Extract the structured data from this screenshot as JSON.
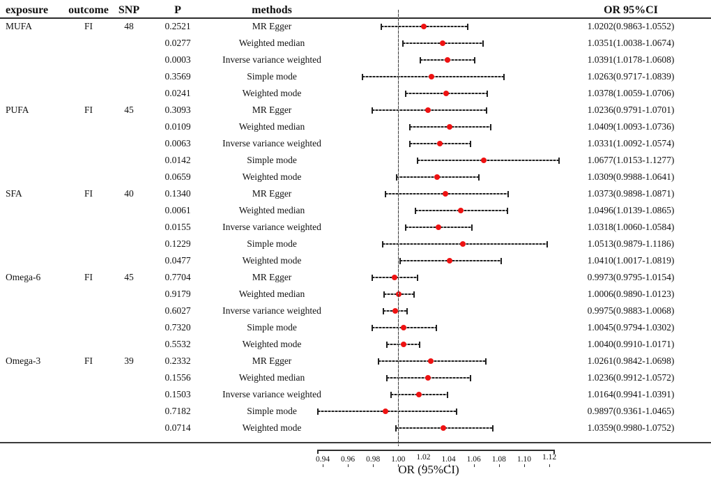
{
  "header": {
    "exposure": "exposure",
    "outcome": "outcome",
    "snp": "SNP",
    "p": "P",
    "methods": "methods",
    "or_ci": "OR 95%CI"
  },
  "axis": {
    "label": "OR (95%CI)",
    "min": 0.94,
    "max": 1.12,
    "ticks": [
      0.94,
      0.96,
      0.98,
      1.0,
      1.02,
      1.04,
      1.06,
      1.08,
      1.1,
      1.12
    ],
    "tick_labels": [
      "0.94",
      "0.96",
      "0.98",
      "1.00",
      "1.02",
      "1.04",
      "1.06",
      "1.08",
      "1.10",
      "1.12"
    ],
    "reference_line": 1.0
  },
  "colors": {
    "point": "#ee1212",
    "bar": "#1f1f1f",
    "text": "#111111"
  },
  "chart_data": {
    "type": "forest",
    "title": "",
    "xlabel": "OR (95%CI)",
    "xlim": [
      0.94,
      1.12
    ],
    "reference_value": 1.0,
    "legend_position": "none",
    "grid": false,
    "groups": [
      {
        "exposure": "MUFA",
        "outcome": "FI",
        "snp": "48",
        "rows": [
          {
            "p": "0.2521",
            "method": "MR Egger",
            "or": 1.0202,
            "lo": 0.9863,
            "hi": 1.0552,
            "label": "1.0202(0.9863-1.0552)"
          },
          {
            "p": "0.0277",
            "method": "Weighted median",
            "or": 1.0351,
            "lo": 1.0038,
            "hi": 1.0674,
            "label": "1.0351(1.0038-1.0674)"
          },
          {
            "p": "0.0003",
            "method": "Inverse variance weighted",
            "or": 1.0391,
            "lo": 1.0178,
            "hi": 1.0608,
            "label": "1.0391(1.0178-1.0608)"
          },
          {
            "p": "0.3569",
            "method": "Simple mode",
            "or": 1.0263,
            "lo": 0.9717,
            "hi": 1.0839,
            "label": "1.0263(0.9717-1.0839)"
          },
          {
            "p": "0.0241",
            "method": "Weighted mode",
            "or": 1.0378,
            "lo": 1.0059,
            "hi": 1.0706,
            "label": "1.0378(1.0059-1.0706)"
          }
        ]
      },
      {
        "exposure": "PUFA",
        "outcome": "FI",
        "snp": "45",
        "rows": [
          {
            "p": "0.3093",
            "method": "MR Egger",
            "or": 1.0236,
            "lo": 0.9791,
            "hi": 1.0701,
            "label": "1.0236(0.9791-1.0701)"
          },
          {
            "p": "0.0109",
            "method": "Weighted median",
            "or": 1.0409,
            "lo": 1.0093,
            "hi": 1.0736,
            "label": "1.0409(1.0093-1.0736)"
          },
          {
            "p": "0.0063",
            "method": "Inverse variance weighted",
            "or": 1.0331,
            "lo": 1.0092,
            "hi": 1.0574,
            "label": "1.0331(1.0092-1.0574)"
          },
          {
            "p": "0.0142",
            "method": "Simple mode",
            "or": 1.0677,
            "lo": 1.0153,
            "hi": 1.1277,
            "label": "1.0677(1.0153-1.1277)"
          },
          {
            "p": "0.0659",
            "method": "Weighted mode",
            "or": 1.0309,
            "lo": 0.9988,
            "hi": 1.0641,
            "label": "1.0309(0.9988-1.0641)"
          }
        ]
      },
      {
        "exposure": "SFA",
        "outcome": "FI",
        "snp": "40",
        "rows": [
          {
            "p": "0.1340",
            "method": "MR Egger",
            "or": 1.0373,
            "lo": 0.9898,
            "hi": 1.0871,
            "label": "1.0373(0.9898-1.0871)"
          },
          {
            "p": "0.0061",
            "method": "Weighted median",
            "or": 1.0496,
            "lo": 1.0139,
            "hi": 1.0865,
            "label": "1.0496(1.0139-1.0865)"
          },
          {
            "p": "0.0155",
            "method": "Inverse variance weighted",
            "or": 1.0318,
            "lo": 1.006,
            "hi": 1.0584,
            "label": "1.0318(1.0060-1.0584)"
          },
          {
            "p": "0.1229",
            "method": "Simple mode",
            "or": 1.0513,
            "lo": 0.9879,
            "hi": 1.1186,
            "label": "1.0513(0.9879-1.1186)"
          },
          {
            "p": "0.0477",
            "method": "Weighted mode",
            "or": 1.041,
            "lo": 1.0017,
            "hi": 1.0819,
            "label": "1.0410(1.0017-1.0819)"
          }
        ]
      },
      {
        "exposure": "Omega-6",
        "outcome": "FI",
        "snp": "45",
        "rows": [
          {
            "p": "0.7704",
            "method": "MR Egger",
            "or": 0.9973,
            "lo": 0.9795,
            "hi": 1.0154,
            "label": "0.9973(0.9795-1.0154)"
          },
          {
            "p": "0.9179",
            "method": "Weighted median",
            "or": 1.0006,
            "lo": 0.989,
            "hi": 1.0123,
            "label": "1.0006(0.9890-1.0123)"
          },
          {
            "p": "0.6027",
            "method": "Inverse variance weighted",
            "or": 0.9975,
            "lo": 0.9883,
            "hi": 1.0068,
            "label": "0.9975(0.9883-1.0068)"
          },
          {
            "p": "0.7320",
            "method": "Simple mode",
            "or": 1.0045,
            "lo": 0.9794,
            "hi": 1.0302,
            "label": "1.0045(0.9794-1.0302)"
          },
          {
            "p": "0.5532",
            "method": "Weighted mode",
            "or": 1.004,
            "lo": 0.991,
            "hi": 1.0171,
            "label": "1.0040(0.9910-1.0171)"
          }
        ]
      },
      {
        "exposure": "Omega-3",
        "outcome": "FI",
        "snp": "39",
        "rows": [
          {
            "p": "0.2332",
            "method": "MR Egger",
            "or": 1.0261,
            "lo": 0.9842,
            "hi": 1.0698,
            "label": "1.0261(0.9842-1.0698)"
          },
          {
            "p": "0.1556",
            "method": "Weighted median",
            "or": 1.0236,
            "lo": 0.9912,
            "hi": 1.0572,
            "label": "1.0236(0.9912-1.0572)"
          },
          {
            "p": "0.1503",
            "method": "Inverse variance weighted",
            "or": 1.0164,
            "lo": 0.9941,
            "hi": 1.0391,
            "label": "1.0164(0.9941-1.0391)"
          },
          {
            "p": "0.7182",
            "method": "Simple mode",
            "or": 0.9897,
            "lo": 0.9361,
            "hi": 1.0465,
            "label": "0.9897(0.9361-1.0465)"
          },
          {
            "p": "0.0714",
            "method": "Weighted mode",
            "or": 1.0359,
            "lo": 0.998,
            "hi": 1.0752,
            "label": "1.0359(0.9980-1.0752)"
          }
        ]
      }
    ]
  }
}
